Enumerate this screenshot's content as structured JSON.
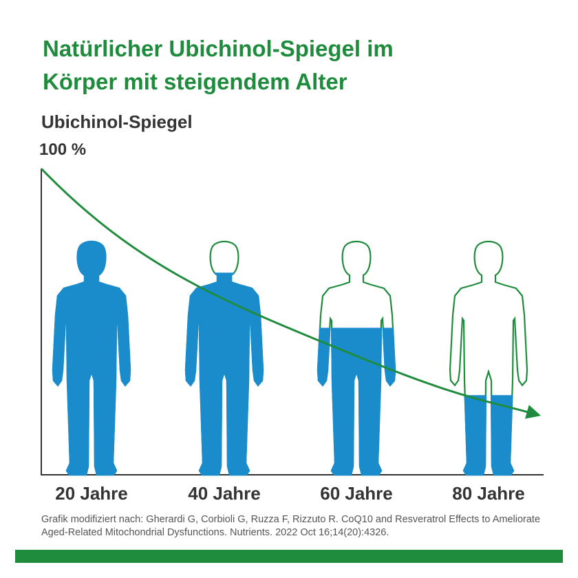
{
  "chart_data": {
    "type": "pictogram",
    "title": [
      "Natürlicher Ubichinol-Spiegel im",
      "Körper mit steigendem Alter"
    ],
    "y_label": "Ubichinol-Spiegel",
    "ylim": [
      0,
      100
    ],
    "yticks": [
      {
        "value": 100,
        "label": "100 %"
      }
    ],
    "categories": [
      "20 Jahre",
      "40 Jahre",
      "60 Jahre",
      "80 Jahre"
    ],
    "values": [
      77,
      66,
      48,
      26
    ],
    "color": "#1a8ccc",
    "outline_color": "#1e8c3c",
    "source": "Grafik modifiziert nach: Gherardi G, Corbioli G, Ruzza F, Rizzuto R. CoQ10 and Resveratrol Effects to Ameliorate Aged-Related Mitochondrial Dysfunctions. Nutrients. 2022 Oct 16;14(20):4326."
  }
}
